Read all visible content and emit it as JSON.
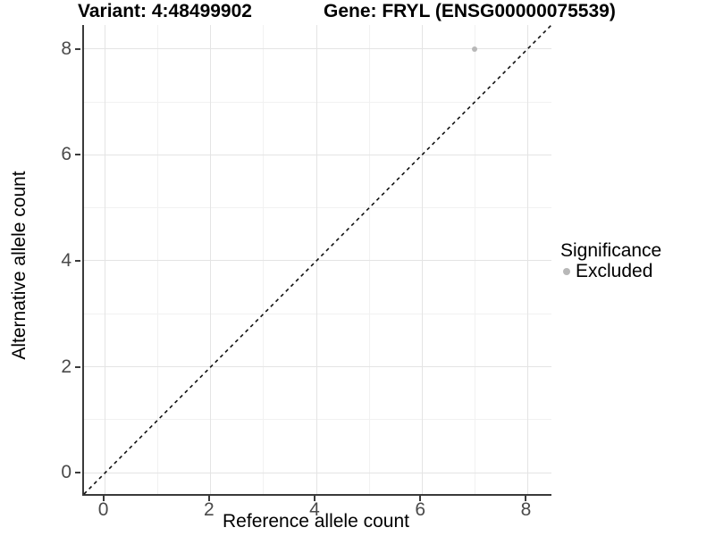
{
  "titles": {
    "variant": "Variant: 4:48499902",
    "gene": "Gene: FRYL (ENSG00000075539)"
  },
  "axes": {
    "x_label": "Reference allele count",
    "y_label": "Alternative allele count"
  },
  "legend": {
    "title": "Significance",
    "items": [
      {
        "label": "Excluded",
        "color": "#b8b8b8"
      }
    ]
  },
  "colors": {
    "grid_major": "#e4e4e4",
    "grid_minor": "#f1f1f1",
    "axis_line": "#3a3a3a",
    "tick_text": "#4a4a4a",
    "excluded_point": "#b8b8b8",
    "reference_line": "#111111"
  },
  "chart_data": {
    "type": "scatter",
    "title": "Variant: 4:48499902    Gene: FRYL (ENSG00000075539)",
    "xlabel": "Reference allele count",
    "ylabel": "Alternative allele count",
    "xlim": [
      -0.4,
      8.45
    ],
    "ylim": [
      -0.4,
      8.45
    ],
    "x_ticks": [
      0,
      2,
      4,
      6,
      8
    ],
    "y_ticks": [
      0,
      2,
      4,
      6,
      8
    ],
    "grid": "major+minor",
    "legend": {
      "title": "Significance",
      "position": "right"
    },
    "series": [
      {
        "name": "Excluded",
        "color": "#b8b8b8",
        "points": [
          [
            7,
            8
          ]
        ]
      }
    ],
    "reference_line": {
      "style": "dashed",
      "slope": 1,
      "intercept": 0,
      "equation": "y = x",
      "color": "#111111"
    }
  }
}
